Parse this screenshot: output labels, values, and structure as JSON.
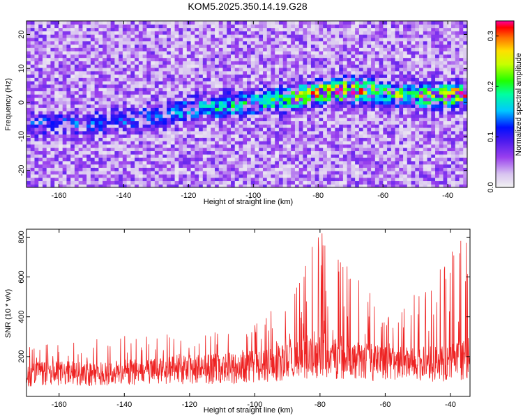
{
  "title": "KOM5.2025.350.14.19.G28",
  "chart_data": [
    {
      "type": "heatmap",
      "name": "spectrogram",
      "xlabel": "Height of straight line (km)",
      "ylabel": "Frequency (Hz)",
      "xlim": [
        -170,
        -34
      ],
      "ylim": [
        -25,
        24
      ],
      "xticks": [
        -160,
        -140,
        -120,
        -100,
        -80,
        -60,
        -40
      ],
      "yticks": [
        -20,
        -10,
        0,
        10,
        20
      ],
      "colorbar": {
        "label": "Normalized spectral amplitude",
        "range": [
          0.0,
          0.33
        ],
        "ticks": [
          0.0,
          0.1,
          0.2,
          0.3
        ]
      },
      "ridge": {
        "description": "frequency band of strongest amplitude vs height",
        "x": [
          -150,
          -140,
          -130,
          -120,
          -110,
          -100,
          -90,
          -80,
          -70,
          -60,
          -50,
          -40,
          -35
        ],
        "y": [
          -6,
          -5,
          -4,
          -2,
          -1,
          0,
          1,
          3,
          4,
          3,
          2,
          2,
          3
        ],
        "peak_amplitude": [
          0.08,
          0.08,
          0.1,
          0.13,
          0.15,
          0.17,
          0.2,
          0.3,
          0.32,
          0.2,
          0.22,
          0.3,
          0.31
        ]
      }
    },
    {
      "type": "line",
      "name": "snr",
      "xlabel": "Height of straight line (km)",
      "ylabel": "SNR (10 * v/v)",
      "xlim": [
        -170,
        -34
      ],
      "ylim": [
        0,
        840
      ],
      "xticks": [
        -160,
        -140,
        -120,
        -100,
        -80,
        -60,
        -40
      ],
      "yticks": [
        200,
        400,
        600,
        800
      ],
      "series": [
        {
          "name": "SNR",
          "color": "#ee2222",
          "x": [
            -170,
            -160,
            -150,
            -140,
            -130,
            -120,
            -110,
            -100,
            -90,
            -80,
            -75,
            -70,
            -60,
            -50,
            -40,
            -35
          ],
          "y_mean": [
            110,
            115,
            115,
            120,
            125,
            135,
            140,
            150,
            170,
            200,
            190,
            180,
            165,
            160,
            170,
            190
          ],
          "y_peak": [
            260,
            270,
            280,
            300,
            290,
            320,
            340,
            370,
            450,
            830,
            830,
            600,
            420,
            500,
            720,
            760
          ]
        }
      ]
    }
  ],
  "colors": {
    "axis": "#000000",
    "line": "#ee2222",
    "background": "#ffffff"
  }
}
